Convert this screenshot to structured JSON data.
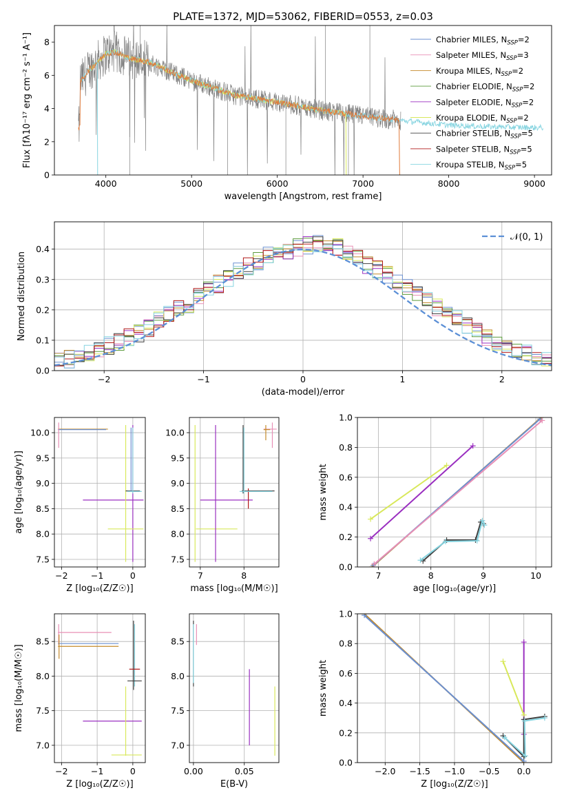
{
  "figure_title": "PLATE=1372, MJD=53062, FIBERID=0553, z=0.03",
  "colors": {
    "Chabrier MILES": "#6a8fd0",
    "Salpeter MILES": "#e88fb6",
    "Kroupa MILES": "#c48a2a",
    "Chabrier ELODIE": "#5a9a3a",
    "Salpeter ELODIE": "#9a2fc0",
    "Kroupa ELODIE": "#d8e85a",
    "Chabrier STELIB": "#404040",
    "Salpeter STELIB": "#b01818",
    "Kroupa STELIB": "#86d4e0",
    "data": "#808080",
    "model": "#e07a3a",
    "normal_curve": "#5b8fd6"
  },
  "chart_data": [
    {
      "type": "line",
      "panel": "spectrum",
      "xlabel": "wavelength [Angstrom, rest frame]",
      "ylabel": "Flux [fλ10⁻¹⁷ erg cm⁻² s⁻¹ A⁻¹]",
      "xlim": [
        3400,
        9200
      ],
      "ylim": [
        0,
        9
      ],
      "xticks": [
        "4000",
        "5000",
        "6000",
        "7000",
        "8000",
        "9000"
      ],
      "yticks": [
        "0",
        "2",
        "4",
        "6",
        "8"
      ],
      "legend": {
        "placement": "top-right",
        "entries": [
          {
            "name": "Chabrier MILES, N",
            "sub": "SSP",
            "suffix": "=2"
          },
          {
            "name": "Salpeter MILES, N",
            "sub": "SSP",
            "suffix": "=3"
          },
          {
            "name": "Kroupa MILES, N",
            "sub": "SSP",
            "suffix": "=2"
          },
          {
            "name": "Chabrier ELODIE, N",
            "sub": "SSP",
            "suffix": "=2"
          },
          {
            "name": "Salpeter ELODIE, N",
            "sub": "SSP",
            "suffix": "=2"
          },
          {
            "name": "Kroupa ELODIE, N",
            "sub": "SSP",
            "suffix": "=2"
          },
          {
            "name": "Chabrier STELIB, N",
            "sub": "SSP",
            "suffix": "=5"
          },
          {
            "name": "Salpeter STELIB, N",
            "sub": "SSP",
            "suffix": "=5"
          },
          {
            "name": "Kroupa STELIB, N",
            "sub": "SSP",
            "suffix": "=5"
          }
        ]
      },
      "continuum_knots": [
        [
          3700,
          5.6
        ],
        [
          3800,
          6.3
        ],
        [
          4000,
          7.3
        ],
        [
          4100,
          7.4
        ],
        [
          4300,
          7.0
        ],
        [
          4500,
          6.8
        ],
        [
          4800,
          6.1
        ],
        [
          5000,
          5.7
        ],
        [
          5500,
          4.8
        ],
        [
          6000,
          4.4
        ],
        [
          6500,
          3.9
        ],
        [
          7000,
          3.55
        ],
        [
          7400,
          3.3
        ],
        [
          8000,
          3.0
        ],
        [
          8500,
          2.9
        ],
        [
          9000,
          2.85
        ],
        [
          9100,
          2.85
        ]
      ]
    },
    {
      "type": "line",
      "panel": "residuals",
      "xlabel": "(data-model)/error",
      "ylabel": "Normed distribution",
      "xlim": [
        -2.5,
        2.5
      ],
      "ylim": [
        0,
        0.49
      ],
      "xticks": [
        "−2",
        "−1",
        "0",
        "1",
        "2"
      ],
      "yticks": [
        "0.0",
        "0.1",
        "0.2",
        "0.3",
        "0.4"
      ],
      "grid": true,
      "legend": {
        "placement": "top-right",
        "label": "𝒩(0, 1)"
      },
      "bin_width": 0.1,
      "bins_from": -2.5,
      "histogram_centers": [
        0.032,
        0.038,
        0.058,
        0.06,
        0.068,
        0.083,
        0.095,
        0.11,
        0.12,
        0.14,
        0.165,
        0.185,
        0.205,
        0.22,
        0.245,
        0.268,
        0.285,
        0.305,
        0.33,
        0.345,
        0.36,
        0.38,
        0.39,
        0.395,
        0.405,
        0.412,
        0.415,
        0.41,
        0.405,
        0.395,
        0.372,
        0.348,
        0.335,
        0.315,
        0.298,
        0.272,
        0.255,
        0.232,
        0.208,
        0.188,
        0.168,
        0.15,
        0.13,
        0.112,
        0.095,
        0.08,
        0.07,
        0.055,
        0.042,
        0.033
      ]
    },
    {
      "type": "scatter",
      "panel": "age-vs-Z",
      "xlabel": "Z [log₁₀(Z/Z☉)]",
      "ylabel": "age  [log₁₀(age/yr)]",
      "xlim": [
        -2.2,
        0.35
      ],
      "ylim": [
        7.35,
        10.3
      ],
      "xticks": [
        "−2",
        "−1",
        "0"
      ],
      "yticks": [
        "7.5",
        "8.0",
        "8.5",
        "9.0",
        "9.5",
        "10.0"
      ],
      "grid": true
    },
    {
      "type": "scatter",
      "panel": "age-vs-mass",
      "xlabel": "mass [log₁₀(M/M☉)]",
      "ylabel": "",
      "xlim": [
        6.75,
        8.8
      ],
      "ylim": [
        7.35,
        10.3
      ],
      "xticks": [
        "7",
        "8"
      ],
      "yticks": [
        "7.5",
        "8.0",
        "8.5",
        "9.0",
        "9.5",
        "10.0"
      ],
      "grid": true
    },
    {
      "type": "line",
      "panel": "weight-vs-age",
      "xlabel": "age  [log₁₀(age/yr)]",
      "ylabel": "mass weight",
      "xlim": [
        6.6,
        10.3
      ],
      "ylim": [
        0,
        1
      ],
      "xticks": [
        "7",
        "8",
        "9",
        "10"
      ],
      "yticks": [
        "0.0",
        "0.2",
        "0.4",
        "0.6",
        "0.8",
        "1.0"
      ],
      "grid": true,
      "series": [
        {
          "key": "Kroupa ELODIE",
          "points": [
            [
              6.85,
              0.32
            ],
            [
              8.3,
              0.68
            ]
          ]
        },
        {
          "key": "Salpeter ELODIE",
          "points": [
            [
              6.85,
              0.19
            ],
            [
              8.8,
              0.81
            ]
          ]
        },
        {
          "key": "Kroupa MILES",
          "points": [
            [
              6.88,
              0.0
            ],
            [
              10.1,
              1.0
            ]
          ]
        },
        {
          "key": "Chabrier MILES",
          "points": [
            [
              6.9,
              0.01
            ],
            [
              10.08,
              0.99
            ]
          ]
        },
        {
          "key": "Salpeter MILES",
          "points": [
            [
              6.92,
              0.02
            ],
            [
              10.12,
              0.98
            ]
          ]
        },
        {
          "key": "Chabrier STELIB",
          "points": [
            [
              7.85,
              0.04
            ],
            [
              8.3,
              0.18
            ],
            [
              8.85,
              0.18
            ],
            [
              8.95,
              0.3
            ],
            [
              9.0,
              0.29
            ]
          ]
        },
        {
          "key": "Kroupa STELIB",
          "points": [
            [
              7.8,
              0.045
            ],
            [
              8.28,
              0.17
            ],
            [
              8.88,
              0.175
            ],
            [
              8.98,
              0.31
            ],
            [
              9.02,
              0.28
            ]
          ]
        }
      ]
    },
    {
      "type": "scatter",
      "panel": "mass-vs-Z",
      "xlabel": "Z [log₁₀(Z/Z☉)]",
      "ylabel": "mass [log₁₀(M/M☉)]",
      "xlim": [
        -2.2,
        0.35
      ],
      "ylim": [
        6.75,
        8.9
      ],
      "xticks": [
        "−2",
        "−1",
        "0"
      ],
      "yticks": [
        "7.0",
        "7.5",
        "8.0",
        "8.5"
      ],
      "grid": true
    },
    {
      "type": "scatter",
      "panel": "mass-vs-ebv",
      "xlabel": "E(B-V)",
      "ylabel": "",
      "xlim": [
        -0.004,
        0.084
      ],
      "ylim": [
        6.75,
        8.9
      ],
      "xticks": [
        "0.00",
        "0.05"
      ],
      "yticks": [
        "7.0",
        "7.5",
        "8.0",
        "8.5"
      ],
      "grid": true
    },
    {
      "type": "line",
      "panel": "weight-vs-Z",
      "xlabel": "Z [log₁₀(Z/Z☉)]",
      "ylabel": "mass weight",
      "xlim": [
        -2.4,
        0.4
      ],
      "ylim": [
        0,
        1
      ],
      "xticks": [
        "−2.0",
        "−1.5",
        "−1.0",
        "−0.5",
        "0.0"
      ],
      "yticks": [
        "0.0",
        "0.2",
        "0.4",
        "0.6",
        "0.8",
        "1.0"
      ],
      "grid": true,
      "series": [
        {
          "key": "Kroupa MILES",
          "points": [
            [
              -2.3,
              1.0
            ],
            [
              0.0,
              0.0
            ]
          ]
        },
        {
          "key": "Chabrier MILES",
          "points": [
            [
              -2.3,
              0.99
            ],
            [
              0.0,
              0.01
            ]
          ]
        },
        {
          "key": "Salpeter ELODIE",
          "points": [
            [
              0.0,
              0.81
            ],
            [
              0.0,
              0.19
            ]
          ]
        },
        {
          "key": "Kroupa ELODIE",
          "points": [
            [
              -0.3,
              0.68
            ],
            [
              0.0,
              0.32
            ]
          ]
        },
        {
          "key": "Chabrier STELIB",
          "points": [
            [
              -0.3,
              0.18
            ],
            [
              0.0,
              0.04
            ],
            [
              0.0,
              0.29
            ],
            [
              0.3,
              0.31
            ]
          ]
        },
        {
          "key": "Kroupa STELIB",
          "points": [
            [
              -0.28,
              0.17
            ],
            [
              0.02,
              0.045
            ],
            [
              0.01,
              0.28
            ],
            [
              0.3,
              0.3
            ]
          ]
        }
      ]
    }
  ]
}
